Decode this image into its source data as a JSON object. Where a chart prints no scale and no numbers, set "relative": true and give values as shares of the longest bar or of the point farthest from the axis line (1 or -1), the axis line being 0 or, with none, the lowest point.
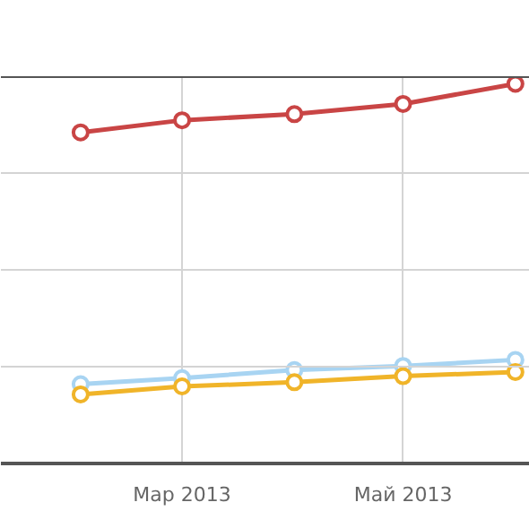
{
  "chart_data": {
    "type": "line",
    "relative": true,
    "marker": "circle",
    "grid": true,
    "x": [
      "2013-02-01",
      "2013-03-01",
      "2013-04-01",
      "2013-05-01",
      "2013-06-01"
    ],
    "xlim": [
      "2013-01-10",
      "2013-06-05"
    ],
    "xticks": [
      {
        "value": "2013-03-01",
        "label": "Мар 2013"
      },
      {
        "value": "2013-05-01",
        "label": "Май 2013"
      }
    ],
    "series": [
      {
        "color": "#c94545",
        "values": [
          0.872,
          0.904,
          0.92,
          0.947,
          1
        ]
      },
      {
        "color": "#a8d4f2",
        "values": [
          0.209,
          0.225,
          0.246,
          0.257,
          0.273
        ]
      },
      {
        "color": "#f0b429",
        "values": [
          0.182,
          0.203,
          0.214,
          0.23,
          0.241
        ]
      }
    ]
  }
}
